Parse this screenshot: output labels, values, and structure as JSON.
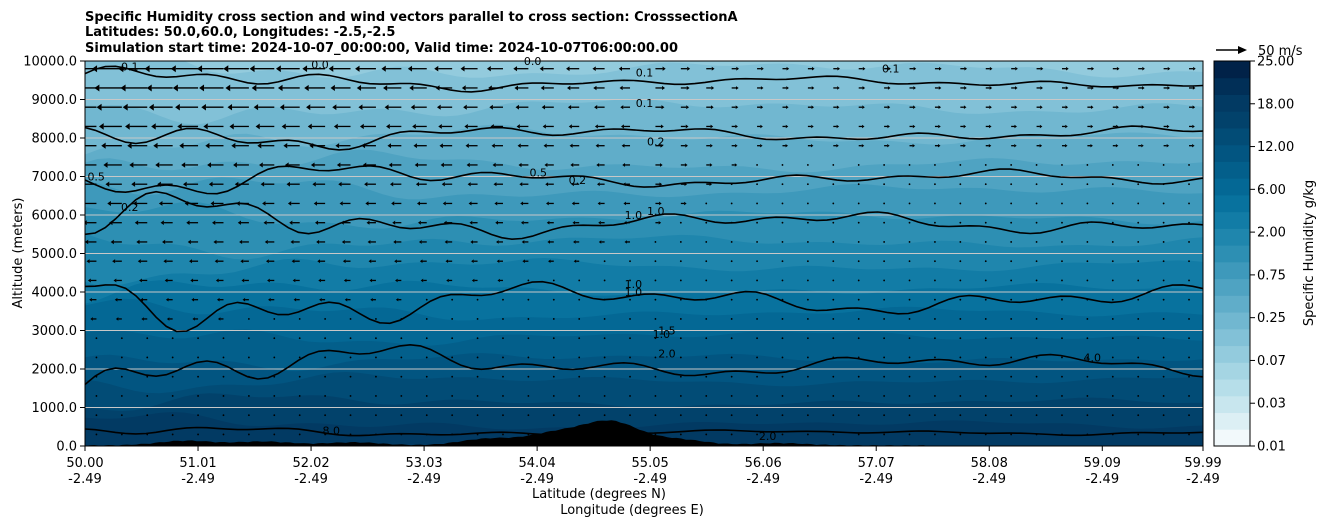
{
  "chart_data": {
    "type": "heatmap",
    "title_lines": [
      "Specific Humidity cross section and wind vectors parallel to cross section: CrosssectionA",
      "Latitudes: 50.0,60.0, Longitudes: -2.5,-2.5",
      "Simulation start time: 2024-10-07_00:00:00, Valid time: 2024-10-07T06:00:00.00"
    ],
    "ylabel": "Altitude (meters)",
    "xlabel_lat": "Latitude (degrees N)",
    "xlabel_lon": "Longitude (degrees E)",
    "ylim": [
      0,
      10000
    ],
    "xlim": [
      50.0,
      59.99
    ],
    "y_ticks": [
      "0.0",
      "1000.0",
      "2000.0",
      "3000.0",
      "4000.0",
      "5000.0",
      "6000.0",
      "7000.0",
      "8000.0",
      "9000.0",
      "10000.0"
    ],
    "y_tick_values": [
      0,
      1000,
      2000,
      3000,
      4000,
      5000,
      6000,
      7000,
      8000,
      9000,
      10000
    ],
    "x_tick_lat": [
      "50.00",
      "51.01",
      "52.02",
      "53.03",
      "54.04",
      "55.05",
      "56.06",
      "57.07",
      "58.08",
      "59.09",
      "59.99"
    ],
    "x_tick_lon": [
      "-2.49",
      "-2.49",
      "-2.49",
      "-2.49",
      "-2.49",
      "-2.49",
      "-2.49",
      "-2.49",
      "-2.49",
      "-2.49",
      "-2.49"
    ],
    "x_tick_values": [
      50.0,
      51.01,
      52.02,
      53.03,
      54.04,
      55.05,
      56.06,
      57.07,
      58.08,
      59.09,
      59.99
    ],
    "grid": "horizontal",
    "colorbar": {
      "label": "Specific Humidity g/kg",
      "levels": [
        0.01,
        0.02,
        0.03,
        0.05,
        0.07,
        0.1,
        0.15,
        0.25,
        0.35,
        0.5,
        0.75,
        1.0,
        1.5,
        2.0,
        3.0,
        4.0,
        6.0,
        8.0,
        12.0,
        15.0,
        18.0,
        21.0,
        25.0
      ],
      "tick_labels": [
        "0.01",
        "0.03",
        "0.07",
        "0.25",
        "0.75",
        "2.00",
        "6.00",
        "12.00",
        "18.00",
        "25.00"
      ],
      "tick_values": [
        0.01,
        0.03,
        0.07,
        0.25,
        0.75,
        2.0,
        6.0,
        12.0,
        18.0,
        25.0
      ],
      "colors": [
        "#f2f9fb",
        "#dceff4",
        "#c8e6ee",
        "#b6dee9",
        "#a5d5e3",
        "#93cbdd",
        "#82c1d7",
        "#71b7d0",
        "#60adc9",
        "#4fa3c2",
        "#3e99bb",
        "#2d8fb3",
        "#1f86ad",
        "#127ca6",
        "#08729e",
        "#046895",
        "#035f8b",
        "#025581",
        "#024c76",
        "#02426b",
        "#023a63",
        "#012f57",
        "#012248"
      ]
    },
    "quiver_key": "50 m/s",
    "contour_levels": [
      {
        "label": "0.1",
        "height": 9450,
        "amp": 350
      },
      {
        "label": "0.2",
        "height": 8100,
        "amp": 450
      },
      {
        "label": "0.5",
        "height": 6950,
        "amp": 500
      },
      {
        "label": "1.0",
        "height": 5800,
        "amp": 700
      },
      {
        "label": "2.0",
        "height": 3800,
        "amp": 900
      },
      {
        "label": "4.0",
        "height": 2100,
        "amp": 700
      },
      {
        "label": "8.0",
        "height": 350,
        "amp": 150
      }
    ],
    "contour_label_positions": [
      {
        "label": "0.1",
        "x": 50.4,
        "y": 9750
      },
      {
        "label": "0.0",
        "x": 52.1,
        "y": 9800
      },
      {
        "label": "0.0",
        "x": 54.0,
        "y": 9900
      },
      {
        "label": "0.1",
        "x": 55.0,
        "y": 9600
      },
      {
        "label": "0.1",
        "x": 55.0,
        "y": 8800
      },
      {
        "label": "0.1",
        "x": 57.2,
        "y": 9700
      },
      {
        "label": "0.2",
        "x": 55.1,
        "y": 7800
      },
      {
        "label": "0.5",
        "x": 50.1,
        "y": 6900
      },
      {
        "label": "0.2",
        "x": 50.4,
        "y": 6100
      },
      {
        "label": "0.5",
        "x": 54.05,
        "y": 7000
      },
      {
        "label": "0.2",
        "x": 54.4,
        "y": 6800
      },
      {
        "label": "1.0",
        "x": 54.9,
        "y": 5900
      },
      {
        "label": "1.0",
        "x": 55.1,
        "y": 6000
      },
      {
        "label": "1.0",
        "x": 54.9,
        "y": 4100
      },
      {
        "label": "1.0",
        "x": 54.9,
        "y": 3900
      },
      {
        "label": "1.5",
        "x": 55.2,
        "y": 2900
      },
      {
        "label": "1.0",
        "x": 55.15,
        "y": 2800
      },
      {
        "label": "2.0",
        "x": 55.2,
        "y": 2300
      },
      {
        "label": "4.0",
        "x": 59.0,
        "y": 2200
      },
      {
        "label": "8.0",
        "x": 52.2,
        "y": 300
      },
      {
        "label": "2.0",
        "x": 56.1,
        "y": 150
      }
    ],
    "terrain_peaks": [
      {
        "x": 50.9,
        "h": 120
      },
      {
        "x": 51.6,
        "h": 100
      },
      {
        "x": 52.4,
        "h": 80
      },
      {
        "x": 53.6,
        "h": 170
      },
      {
        "x": 54.2,
        "h": 300
      },
      {
        "x": 54.7,
        "h": 600
      },
      {
        "x": 55.3,
        "h": 150
      },
      {
        "x": 56.2,
        "h": 60
      }
    ]
  }
}
